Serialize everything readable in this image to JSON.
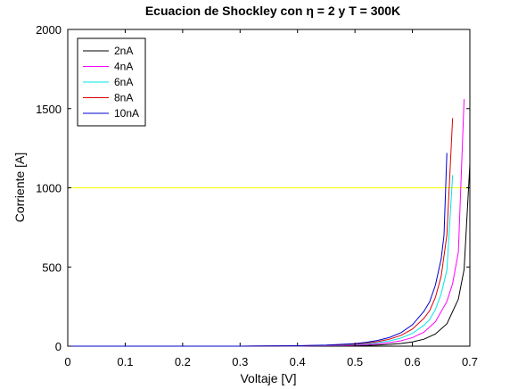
{
  "chart_data": {
    "type": "line",
    "title": "Ecuacion de Shockley con η = 2 y T = 300K",
    "xlabel": "Voltaje [V]",
    "ylabel": "Corriente [A]",
    "xlim": [
      0,
      0.7
    ],
    "ylim": [
      0,
      2000
    ],
    "x_ticks": [
      "0",
      "0.1",
      "0.2",
      "0.3",
      "0.4",
      "0.5",
      "0.6",
      "0.7"
    ],
    "y_ticks": [
      "0",
      "500",
      "1000",
      "1500",
      "2000"
    ],
    "grid": false,
    "legend_position": "top-left",
    "series": [
      {
        "name": "2nA",
        "color": "#000000",
        "x": [
          0,
          0.1,
          0.2,
          0.3,
          0.4,
          0.45,
          0.5,
          0.52,
          0.54,
          0.56,
          0.58,
          0.6,
          0.62,
          0.64,
          0.66,
          0.68,
          0.69,
          0.7
        ],
        "y": [
          0,
          0,
          0,
          0,
          0.5,
          1.4,
          3.2,
          4.9,
          7.3,
          11,
          17,
          27,
          44,
          77,
          141,
          297,
          485,
          1150
        ]
      },
      {
        "name": "4nA",
        "color": "#ff00ff",
        "x": [
          0,
          0.1,
          0.2,
          0.3,
          0.4,
          0.45,
          0.5,
          0.52,
          0.54,
          0.56,
          0.58,
          0.6,
          0.62,
          0.64,
          0.66,
          0.67,
          0.68,
          0.69
        ],
        "y": [
          0,
          0,
          0,
          0,
          1,
          2.8,
          6.4,
          9.8,
          14.6,
          22,
          34,
          54,
          88,
          154,
          282,
          395,
          594,
          1560
        ]
      },
      {
        "name": "6nA",
        "color": "#00e5e5",
        "x": [
          0,
          0.1,
          0.2,
          0.3,
          0.4,
          0.45,
          0.5,
          0.52,
          0.54,
          0.56,
          0.58,
          0.6,
          0.62,
          0.63,
          0.64,
          0.65,
          0.66,
          0.67
        ],
        "y": [
          0,
          0,
          0,
          0,
          1.5,
          4.2,
          9.6,
          14.7,
          21.9,
          33,
          51,
          81,
          132,
          168,
          231,
          330,
          480,
          1080
        ]
      },
      {
        "name": "8nA",
        "color": "#e00000",
        "x": [
          0,
          0.1,
          0.2,
          0.3,
          0.4,
          0.45,
          0.5,
          0.52,
          0.54,
          0.56,
          0.58,
          0.6,
          0.62,
          0.63,
          0.64,
          0.65,
          0.66,
          0.67
        ],
        "y": [
          0,
          0,
          0,
          0,
          2,
          5.6,
          12.8,
          19.6,
          29.2,
          44,
          68,
          108,
          176,
          224,
          308,
          440,
          700,
          1440
        ]
      },
      {
        "name": "10nA",
        "color": "#0000cc",
        "x": [
          0,
          0.1,
          0.2,
          0.3,
          0.4,
          0.45,
          0.5,
          0.52,
          0.54,
          0.56,
          0.58,
          0.6,
          0.62,
          0.63,
          0.64,
          0.65,
          0.655,
          0.66
        ],
        "y": [
          0,
          0,
          0,
          0,
          2.5,
          7,
          16,
          24.5,
          36.5,
          55,
          85,
          135,
          220,
          280,
          385,
          550,
          700,
          1220
        ]
      }
    ],
    "reference_line": {
      "y": 1000,
      "color": "#ffff00"
    }
  }
}
